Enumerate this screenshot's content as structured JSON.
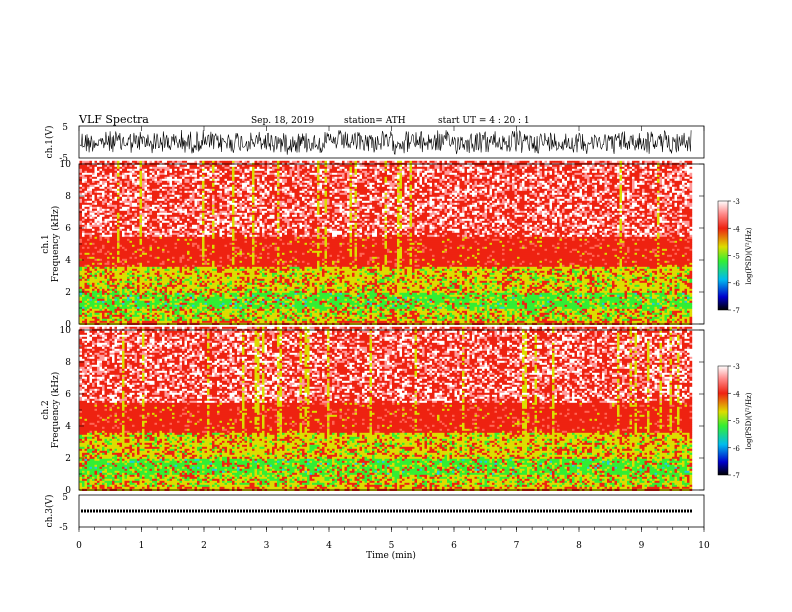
{
  "header": {
    "title": "VLF  Spectra",
    "date": "Sep. 18, 2019",
    "station": "station= ATH",
    "start": "start  UT  =   4  : 20 : 1"
  },
  "colors": {
    "white": "#ffffff",
    "pink": "#ffcccc",
    "red": "#ee2211",
    "yellow": "#dddd00",
    "green": "#33ee33",
    "cyan": "#22ccdd",
    "blue": "#0022cc",
    "black": "#000000"
  },
  "chart_data": [
    {
      "type": "line",
      "ylabel": "ch.1(V)",
      "ylim": [
        -5,
        5
      ],
      "yticks": [
        "5",
        "-5"
      ],
      "xlim": [
        0,
        10
      ],
      "style": "dense noisy waveform, amplitude ~ +/-3.5 V, ending at ~9.8 min"
    },
    {
      "type": "heatmap",
      "label": "ch.1",
      "ylabel": "Frequency  (kHz)",
      "ylim": [
        0,
        10
      ],
      "yticks": [
        "0",
        "2",
        "4",
        "6",
        "8",
        "10"
      ],
      "xlim": [
        0,
        10
      ],
      "data_end_min": 9.8,
      "frequency_bands_kHz": [
        {
          "range": [
            0,
            0.3
          ],
          "level": "red-yellow"
        },
        {
          "range": [
            0.3,
            1.0
          ],
          "level": "yellow-green"
        },
        {
          "range": [
            1.0,
            2.0
          ],
          "level": "green"
        },
        {
          "range": [
            2.0,
            3.6
          ],
          "level": "yellow"
        },
        {
          "range": [
            3.6,
            5.5
          ],
          "level": "red"
        },
        {
          "range": [
            5.5,
            10.2
          ],
          "level": "pink-red speckle"
        }
      ]
    },
    {
      "type": "heatmap",
      "label": "ch.2",
      "ylabel": "Frequency  (kHz)",
      "ylim": [
        0,
        10
      ],
      "yticks": [
        "0",
        "2",
        "4",
        "6",
        "8",
        "10"
      ],
      "xlim": [
        0,
        10
      ],
      "data_end_min": 9.8,
      "frequency_bands_kHz": [
        {
          "range": [
            0,
            0.3
          ],
          "level": "red-yellow"
        },
        {
          "range": [
            0.3,
            1.0
          ],
          "level": "yellow-green"
        },
        {
          "range": [
            1.0,
            2.0
          ],
          "level": "green"
        },
        {
          "range": [
            2.0,
            3.6
          ],
          "level": "yellow"
        },
        {
          "range": [
            3.6,
            5.5
          ],
          "level": "red"
        },
        {
          "range": [
            5.5,
            10.2
          ],
          "level": "pink-red speckle"
        }
      ]
    },
    {
      "type": "line",
      "ylabel": "ch.3(V)",
      "ylim": [
        -5,
        5
      ],
      "yticks": [
        "5",
        "-5"
      ],
      "xlim": [
        0,
        10
      ],
      "style": "flat dashed trace near -1 V, ending at ~9.8 min"
    }
  ],
  "colorbar": {
    "label": "log(PSD)(V²/Hz)",
    "range": [
      -7,
      -3
    ],
    "ticks": [
      "-3",
      "-4",
      "-5",
      "-6",
      "-7"
    ]
  },
  "xaxis": {
    "label": "Time  (min)",
    "ticks": [
      "0",
      "1",
      "2",
      "3",
      "4",
      "5",
      "6",
      "7",
      "8",
      "9",
      "10"
    ]
  }
}
